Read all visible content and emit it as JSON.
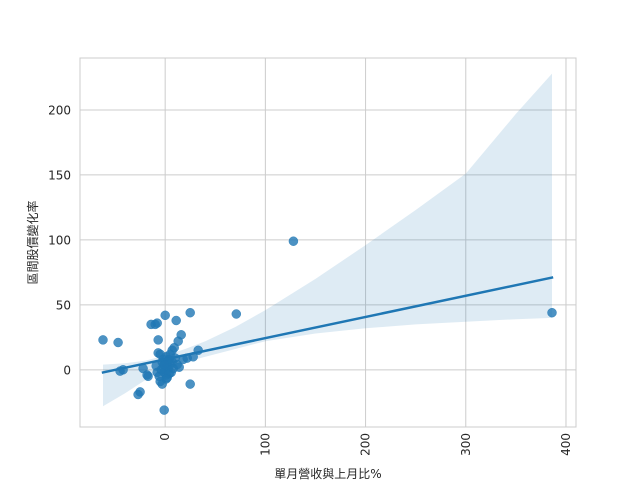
{
  "chart_data": {
    "type": "scatter",
    "title": "",
    "xlabel": "單月營收與上月比%",
    "ylabel": "區間股價變化率",
    "xlim": [
      -85,
      410
    ],
    "ylim": [
      -44,
      240
    ],
    "xticks": [
      0,
      100,
      200,
      300,
      400
    ],
    "xtick_labels": [
      "0",
      "100",
      "200",
      "300",
      "400"
    ],
    "yticks": [
      0,
      50,
      100,
      150,
      200
    ],
    "ytick_labels": [
      "0",
      "50",
      "100",
      "150",
      "200"
    ],
    "grid": true,
    "legend": "none",
    "colors": {
      "points": "#1f77b4",
      "regression_line": "#1f77b4",
      "confidence_band": "#1f77b4",
      "grid": "#cccccc",
      "frame": "#cccccc"
    },
    "points": [
      {
        "x": -62,
        "y": 23
      },
      {
        "x": -47,
        "y": 21
      },
      {
        "x": -45,
        "y": -1
      },
      {
        "x": -42,
        "y": 0
      },
      {
        "x": -27,
        "y": -19
      },
      {
        "x": -25,
        "y": -17
      },
      {
        "x": -22,
        "y": 1
      },
      {
        "x": -18,
        "y": -4
      },
      {
        "x": -17,
        "y": -5
      },
      {
        "x": -14,
        "y": 35
      },
      {
        "x": -10,
        "y": 35
      },
      {
        "x": -8,
        "y": 36
      },
      {
        "x": -7,
        "y": 23
      },
      {
        "x": -7,
        "y": 13
      },
      {
        "x": -5,
        "y": 12
      },
      {
        "x": -9,
        "y": 3
      },
      {
        "x": -8,
        "y": -2
      },
      {
        "x": -6,
        "y": -5
      },
      {
        "x": -5,
        "y": -9
      },
      {
        "x": -3,
        "y": -11
      },
      {
        "x": -3,
        "y": 6
      },
      {
        "x": -2,
        "y": 8
      },
      {
        "x": -2,
        "y": 2
      },
      {
        "x": -1,
        "y": -2
      },
      {
        "x": 0,
        "y": 0
      },
      {
        "x": 0,
        "y": 5
      },
      {
        "x": 1,
        "y": 10
      },
      {
        "x": 1,
        "y": -4
      },
      {
        "x": 2,
        "y": 3
      },
      {
        "x": 2,
        "y": -6
      },
      {
        "x": 3,
        "y": 7
      },
      {
        "x": 3,
        "y": 1
      },
      {
        "x": 4,
        "y": -3
      },
      {
        "x": 5,
        "y": 12
      },
      {
        "x": 5,
        "y": 4
      },
      {
        "x": 6,
        "y": -2
      },
      {
        "x": 7,
        "y": 15
      },
      {
        "x": 7,
        "y": 6
      },
      {
        "x": 8,
        "y": 1
      },
      {
        "x": 9,
        "y": 17
      },
      {
        "x": 10,
        "y": 9
      },
      {
        "x": 11,
        "y": 38
      },
      {
        "x": 12,
        "y": 4
      },
      {
        "x": 13,
        "y": 22
      },
      {
        "x": 14,
        "y": 2
      },
      {
        "x": 16,
        "y": 27
      },
      {
        "x": 18,
        "y": 8
      },
      {
        "x": 22,
        "y": 9
      },
      {
        "x": 25,
        "y": 44
      },
      {
        "x": 25,
        "y": -11
      },
      {
        "x": 28,
        "y": 10
      },
      {
        "x": 33,
        "y": 15
      },
      {
        "x": 0,
        "y": 42
      },
      {
        "x": -1,
        "y": -31
      },
      {
        "x": -4,
        "y": 0
      },
      {
        "x": 1,
        "y": -7
      },
      {
        "x": 4,
        "y": 8
      },
      {
        "x": -1,
        "y": 4
      },
      {
        "x": 71,
        "y": 43
      },
      {
        "x": 128,
        "y": 99
      },
      {
        "x": 386,
        "y": 44
      }
    ],
    "regression_line": {
      "x": [
        -62,
        386
      ],
      "y": [
        -2,
        71
      ]
    },
    "confidence_band": {
      "x": [
        -62,
        -40,
        -20,
        0,
        20,
        40,
        70,
        100,
        150,
        200,
        250,
        300,
        350,
        386
      ],
      "upper": [
        4,
        5,
        7,
        11,
        16,
        22,
        33,
        46,
        70,
        96,
        123,
        151,
        197,
        228
      ],
      "lower": [
        -28,
        -18,
        -8,
        2,
        6,
        10,
        16,
        22,
        28,
        32,
        35,
        37,
        39,
        40
      ]
    }
  }
}
